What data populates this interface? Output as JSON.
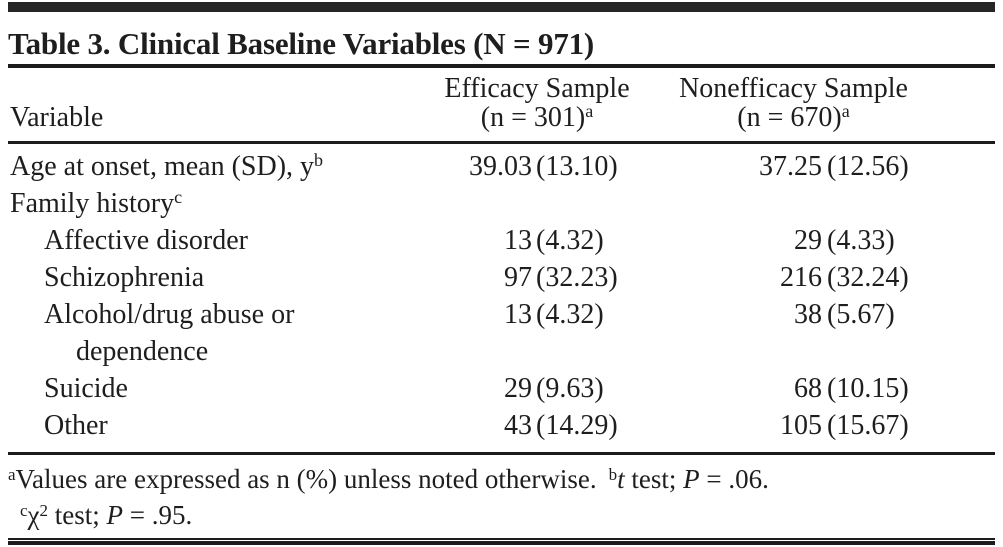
{
  "title": "Table 3. Clinical Baseline Variables (N = 971)",
  "colors": {
    "text": "#1e1e1e",
    "rules": "#1c1c1c",
    "top_bar": "#262626",
    "background": "#ffffff"
  },
  "header": {
    "variable_label": "Variable",
    "efficacy": {
      "line1": "Efficacy Sample",
      "line2": "(n = 301)",
      "sup": "a"
    },
    "nonefficacy": {
      "line1": "Nonefficacy Sample",
      "line2": "(n = 670)",
      "sup": "a"
    }
  },
  "rows": [
    {
      "label": "Age at onset, mean (SD), y",
      "sup": "b",
      "eff_n": "39.03",
      "eff_pct": "(13.10)",
      "non_n": "37.25",
      "non_pct": "(12.56)"
    },
    {
      "label": "Family history",
      "sup": "c"
    },
    {
      "label": "Affective disorder",
      "eff_n": "13",
      "eff_pct": "(4.32)",
      "non_n": "29",
      "non_pct": "(4.33)"
    },
    {
      "label": "Schizophrenia",
      "eff_n": "97",
      "eff_pct": "(32.23)",
      "non_n": "216",
      "non_pct": "(32.24)"
    },
    {
      "label": "Alcohol/drug abuse or dependence",
      "eff_n": "13",
      "eff_pct": "(4.32)",
      "non_n": "38",
      "non_pct": "(5.67)"
    },
    {
      "label": "Suicide",
      "eff_n": "29",
      "eff_pct": "(9.63)",
      "non_n": "68",
      "non_pct": "(10.15)"
    },
    {
      "label": "Other",
      "eff_n": "43",
      "eff_pct": "(14.29)",
      "non_n": "105",
      "non_pct": "(15.67)"
    }
  ],
  "footnotes": {
    "marker_a": "a",
    "text_a": "Values are expressed as n (%) unless noted otherwise.",
    "marker_b": "b",
    "stat_b": "t",
    "mid_b": " test; ",
    "p_b": "P",
    "val_b": " = .06.",
    "marker_c": "c",
    "chi": "χ",
    "chi_sup": "2",
    "mid_c": " test; ",
    "p_c": "P",
    "val_c": " = .95."
  }
}
